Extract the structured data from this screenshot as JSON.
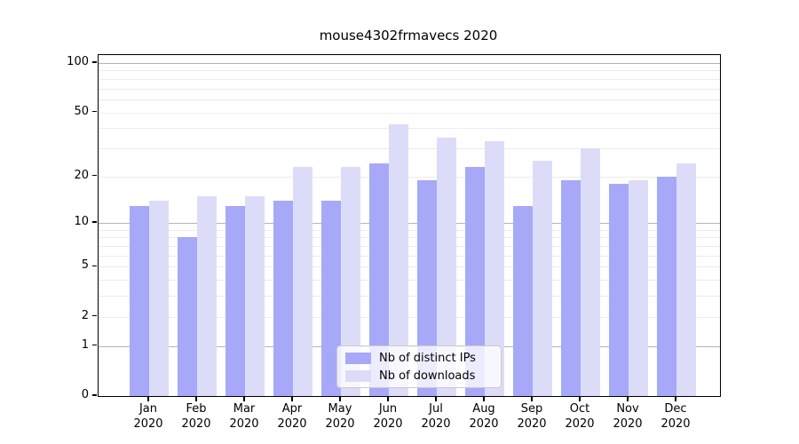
{
  "chart_data": {
    "type": "bar",
    "title": "mouse4302frmavecs 2020",
    "categories": [
      "Jan",
      "Feb",
      "Mar",
      "Apr",
      "May",
      "Jun",
      "Jul",
      "Aug",
      "Sep",
      "Oct",
      "Nov",
      "Dec"
    ],
    "year_label": "2020",
    "series": [
      {
        "name": "Nb of distinct IPs",
        "color": "#a8a8f8",
        "values": [
          13,
          8,
          13,
          14,
          14,
          24,
          19,
          23,
          13,
          19,
          18,
          20
        ]
      },
      {
        "name": "Nb of downloads",
        "color": "#dcdcf8",
        "values": [
          14,
          15,
          15,
          23,
          23,
          42,
          35,
          33,
          25,
          30,
          19,
          24
        ]
      }
    ],
    "yscale": "log1p",
    "ytick_labels": [
      0,
      1,
      2,
      5,
      10,
      20,
      50,
      100
    ],
    "ymax_axis": 110,
    "grid": "on",
    "legend_position": "lower center",
    "colors": {
      "grid_major": "#b4b4b4",
      "grid_minor": "#ececec",
      "axis": "#000000",
      "legend_border": "#cccccc"
    }
  }
}
